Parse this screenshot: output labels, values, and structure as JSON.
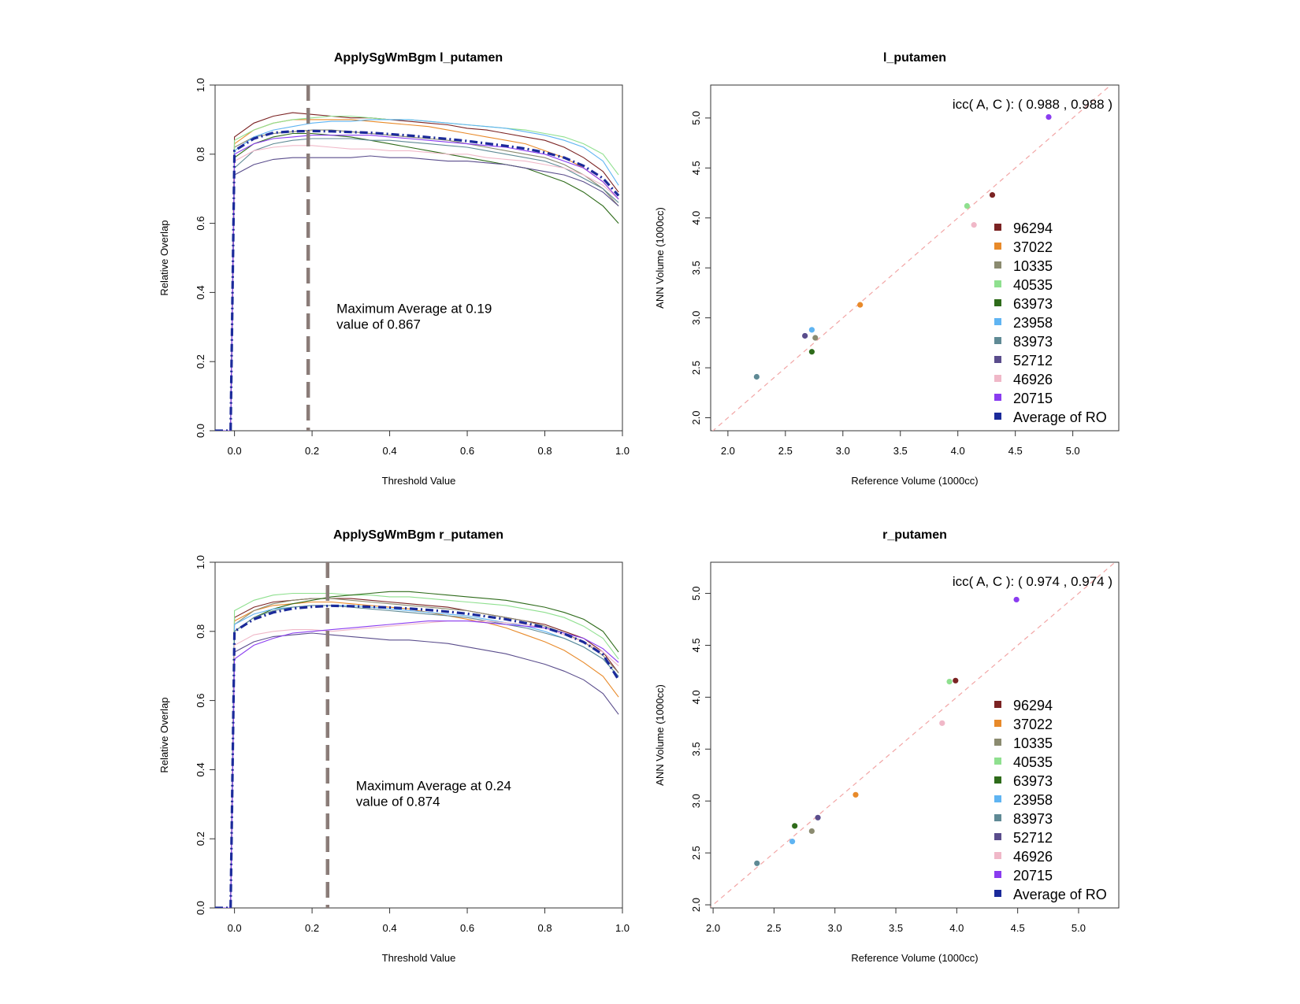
{
  "colors": {
    "96294": "#7b2323",
    "37022": "#e88a2a",
    "10335": "#8b8b70",
    "40535": "#8fe08f",
    "63973": "#2e6b1a",
    "23958": "#5fb4f2",
    "83973": "#5f8a95",
    "52712": "#5a4d8c",
    "46926": "#f0b8c8",
    "20715": "#8a3cf0",
    "Average of RO": "#1b2a9a",
    "threshold_line": "#8a7c78",
    "identity_line": "#f2a5a5"
  },
  "chart_data": [
    {
      "type": "line",
      "title": "ApplySgWmBgm l_putamen",
      "xlabel": "Threshold Value",
      "ylabel": "Relative Overlap",
      "xlim": [
        -0.05,
        1.0
      ],
      "ylim": [
        0.0,
        1.0
      ],
      "x_ticks": [
        "0.0",
        "0.2",
        "0.4",
        "0.6",
        "0.8",
        "1.0"
      ],
      "y_ticks": [
        "0.0",
        "0.2",
        "0.4",
        "0.6",
        "0.8",
        "1.0"
      ],
      "x": [
        -0.05,
        -0.01,
        0.0,
        0.05,
        0.1,
        0.15,
        0.2,
        0.25,
        0.3,
        0.35,
        0.4,
        0.45,
        0.5,
        0.55,
        0.6,
        0.65,
        0.7,
        0.75,
        0.8,
        0.85,
        0.9,
        0.95,
        0.99
      ],
      "series": [
        {
          "name": "96294",
          "values": [
            0,
            0,
            0.85,
            0.89,
            0.91,
            0.92,
            0.915,
            0.91,
            0.905,
            0.905,
            0.9,
            0.895,
            0.89,
            0.885,
            0.875,
            0.87,
            0.86,
            0.85,
            0.84,
            0.82,
            0.79,
            0.75,
            0.69
          ]
        },
        {
          "name": "37022",
          "values": [
            0,
            0,
            0.83,
            0.87,
            0.89,
            0.9,
            0.9,
            0.9,
            0.9,
            0.895,
            0.89,
            0.885,
            0.88,
            0.87,
            0.86,
            0.85,
            0.84,
            0.83,
            0.81,
            0.79,
            0.76,
            0.72,
            0.67
          ]
        },
        {
          "name": "10335",
          "values": [
            0,
            0,
            0.82,
            0.85,
            0.86,
            0.865,
            0.87,
            0.87,
            0.865,
            0.86,
            0.855,
            0.85,
            0.845,
            0.84,
            0.83,
            0.82,
            0.81,
            0.8,
            0.79,
            0.77,
            0.74,
            0.7,
            0.65
          ]
        },
        {
          "name": "40535",
          "values": [
            0,
            0,
            0.84,
            0.87,
            0.89,
            0.9,
            0.905,
            0.91,
            0.91,
            0.905,
            0.9,
            0.9,
            0.895,
            0.89,
            0.885,
            0.88,
            0.875,
            0.87,
            0.86,
            0.85,
            0.83,
            0.8,
            0.74
          ]
        },
        {
          "name": "63973",
          "values": [
            0,
            0,
            0.79,
            0.83,
            0.85,
            0.86,
            0.86,
            0.855,
            0.85,
            0.84,
            0.83,
            0.82,
            0.81,
            0.8,
            0.79,
            0.78,
            0.77,
            0.76,
            0.74,
            0.72,
            0.69,
            0.65,
            0.6
          ]
        },
        {
          "name": "23958",
          "values": [
            0,
            0,
            0.81,
            0.85,
            0.87,
            0.88,
            0.89,
            0.895,
            0.895,
            0.9,
            0.9,
            0.9,
            0.895,
            0.89,
            0.885,
            0.88,
            0.875,
            0.865,
            0.855,
            0.84,
            0.82,
            0.78,
            0.71
          ]
        },
        {
          "name": "83973",
          "values": [
            0,
            0,
            0.76,
            0.81,
            0.83,
            0.84,
            0.845,
            0.845,
            0.845,
            0.84,
            0.84,
            0.835,
            0.83,
            0.825,
            0.82,
            0.81,
            0.8,
            0.79,
            0.78,
            0.76,
            0.73,
            0.7,
            0.66
          ]
        },
        {
          "name": "52712",
          "values": [
            0,
            0,
            0.74,
            0.77,
            0.785,
            0.79,
            0.79,
            0.79,
            0.79,
            0.795,
            0.79,
            0.79,
            0.785,
            0.78,
            0.78,
            0.775,
            0.77,
            0.76,
            0.75,
            0.74,
            0.72,
            0.69,
            0.65
          ]
        },
        {
          "name": "46926",
          "values": [
            0,
            0,
            0.78,
            0.81,
            0.82,
            0.825,
            0.825,
            0.82,
            0.815,
            0.815,
            0.81,
            0.81,
            0.805,
            0.8,
            0.8,
            0.79,
            0.785,
            0.78,
            0.77,
            0.76,
            0.74,
            0.71,
            0.67
          ]
        },
        {
          "name": "20715",
          "values": [
            0,
            0,
            0.8,
            0.83,
            0.845,
            0.85,
            0.855,
            0.855,
            0.855,
            0.855,
            0.85,
            0.845,
            0.84,
            0.835,
            0.83,
            0.825,
            0.82,
            0.81,
            0.8,
            0.78,
            0.76,
            0.72,
            0.67
          ]
        },
        {
          "name": "Average of RO",
          "values": [
            0,
            0,
            0.81,
            0.845,
            0.862,
            0.866,
            0.867,
            0.866,
            0.864,
            0.862,
            0.858,
            0.854,
            0.849,
            0.844,
            0.838,
            0.831,
            0.824,
            0.816,
            0.805,
            0.79,
            0.766,
            0.73,
            0.68
          ]
        }
      ],
      "threshold": 0.19,
      "annotation": [
        "Maximum Average at  0.19",
        "value of  0.867"
      ]
    },
    {
      "type": "scatter",
      "title": "l_putamen",
      "xlabel": "Reference Volume (1000cc)",
      "ylabel": "ANN Volume (1000cc)",
      "xlim": [
        1.85,
        5.4
      ],
      "ylim": [
        1.87,
        5.33
      ],
      "x_ticks": [
        "2.0",
        "2.5",
        "3.0",
        "3.5",
        "4.0",
        "4.5",
        "5.0"
      ],
      "y_ticks": [
        "2.0",
        "2.5",
        "3.0",
        "3.5",
        "4.0",
        "4.5",
        "5.0"
      ],
      "icc_text": "icc( A, C ): ( 0.988  ,  0.988  )",
      "legend": [
        "96294",
        "37022",
        "10335",
        "40535",
        "63973",
        "23958",
        "83973",
        "52712",
        "46926",
        "20715",
        "Average of RO"
      ],
      "points": [
        {
          "name": "96294",
          "x": 4.3,
          "y": 4.23
        },
        {
          "name": "37022",
          "x": 3.15,
          "y": 3.13
        },
        {
          "name": "10335",
          "x": 2.76,
          "y": 2.8
        },
        {
          "name": "40535",
          "x": 4.08,
          "y": 4.12
        },
        {
          "name": "63973",
          "x": 2.73,
          "y": 2.66
        },
        {
          "name": "23958",
          "x": 2.73,
          "y": 2.88
        },
        {
          "name": "83973",
          "x": 2.25,
          "y": 2.41
        },
        {
          "name": "52712",
          "x": 2.67,
          "y": 2.82
        },
        {
          "name": "46926",
          "x": 4.14,
          "y": 3.93
        },
        {
          "name": "20715",
          "x": 4.79,
          "y": 5.01
        }
      ]
    },
    {
      "type": "line",
      "title": "ApplySgWmBgm r_putamen",
      "xlabel": "Threshold Value",
      "ylabel": "Relative Overlap",
      "xlim": [
        -0.05,
        1.0
      ],
      "ylim": [
        0.0,
        1.0
      ],
      "x_ticks": [
        "0.0",
        "0.2",
        "0.4",
        "0.6",
        "0.8",
        "1.0"
      ],
      "y_ticks": [
        "0.0",
        "0.2",
        "0.4",
        "0.6",
        "0.8",
        "1.0"
      ],
      "x": [
        -0.05,
        -0.01,
        0.0,
        0.05,
        0.1,
        0.15,
        0.2,
        0.25,
        0.3,
        0.35,
        0.4,
        0.45,
        0.5,
        0.55,
        0.6,
        0.65,
        0.7,
        0.75,
        0.8,
        0.85,
        0.9,
        0.95,
        0.99
      ],
      "series": [
        {
          "name": "96294",
          "values": [
            0,
            0,
            0.84,
            0.87,
            0.885,
            0.89,
            0.895,
            0.895,
            0.895,
            0.89,
            0.885,
            0.88,
            0.875,
            0.87,
            0.86,
            0.85,
            0.84,
            0.83,
            0.82,
            0.8,
            0.78,
            0.74,
            0.68
          ]
        },
        {
          "name": "37022",
          "values": [
            0,
            0,
            0.83,
            0.86,
            0.875,
            0.88,
            0.885,
            0.885,
            0.88,
            0.875,
            0.87,
            0.865,
            0.855,
            0.845,
            0.835,
            0.825,
            0.81,
            0.79,
            0.77,
            0.745,
            0.71,
            0.67,
            0.61
          ]
        },
        {
          "name": "10335",
          "values": [
            0,
            0,
            0.82,
            0.86,
            0.88,
            0.89,
            0.895,
            0.895,
            0.89,
            0.885,
            0.88,
            0.875,
            0.87,
            0.865,
            0.86,
            0.85,
            0.84,
            0.83,
            0.815,
            0.795,
            0.77,
            0.73,
            0.68
          ]
        },
        {
          "name": "40535",
          "values": [
            0,
            0,
            0.86,
            0.89,
            0.905,
            0.91,
            0.91,
            0.91,
            0.905,
            0.905,
            0.9,
            0.9,
            0.895,
            0.89,
            0.885,
            0.88,
            0.875,
            0.865,
            0.855,
            0.84,
            0.815,
            0.78,
            0.72
          ]
        },
        {
          "name": "63973",
          "values": [
            0,
            0,
            0.8,
            0.84,
            0.865,
            0.88,
            0.89,
            0.9,
            0.905,
            0.91,
            0.915,
            0.915,
            0.91,
            0.905,
            0.9,
            0.895,
            0.89,
            0.88,
            0.87,
            0.855,
            0.835,
            0.8,
            0.74
          ]
        },
        {
          "name": "23958",
          "values": [
            0,
            0,
            0.82,
            0.85,
            0.865,
            0.87,
            0.875,
            0.875,
            0.875,
            0.87,
            0.865,
            0.86,
            0.855,
            0.85,
            0.845,
            0.835,
            0.825,
            0.815,
            0.8,
            0.78,
            0.755,
            0.72,
            0.67
          ]
        },
        {
          "name": "83973",
          "values": [
            0,
            0,
            0.8,
            0.84,
            0.86,
            0.87,
            0.875,
            0.875,
            0.87,
            0.865,
            0.86,
            0.855,
            0.85,
            0.845,
            0.84,
            0.83,
            0.82,
            0.81,
            0.795,
            0.78,
            0.755,
            0.72,
            0.67
          ]
        },
        {
          "name": "52712",
          "values": [
            0,
            0,
            0.74,
            0.77,
            0.785,
            0.79,
            0.795,
            0.79,
            0.785,
            0.78,
            0.775,
            0.775,
            0.77,
            0.765,
            0.755,
            0.745,
            0.735,
            0.72,
            0.705,
            0.685,
            0.66,
            0.62,
            0.56
          ]
        },
        {
          "name": "46926",
          "values": [
            0,
            0,
            0.76,
            0.79,
            0.8,
            0.805,
            0.805,
            0.8,
            0.805,
            0.81,
            0.815,
            0.82,
            0.825,
            0.83,
            0.83,
            0.83,
            0.825,
            0.82,
            0.81,
            0.79,
            0.77,
            0.74,
            0.7
          ]
        },
        {
          "name": "20715",
          "values": [
            0,
            0,
            0.72,
            0.76,
            0.78,
            0.795,
            0.8,
            0.805,
            0.81,
            0.815,
            0.82,
            0.825,
            0.83,
            0.83,
            0.83,
            0.825,
            0.82,
            0.815,
            0.81,
            0.795,
            0.78,
            0.75,
            0.71
          ]
        },
        {
          "name": "Average of RO",
          "values": [
            0,
            0,
            0.8,
            0.835,
            0.855,
            0.866,
            0.871,
            0.874,
            0.873,
            0.871,
            0.869,
            0.866,
            0.862,
            0.857,
            0.851,
            0.843,
            0.835,
            0.824,
            0.811,
            0.793,
            0.769,
            0.733,
            0.66
          ]
        }
      ],
      "threshold": 0.24,
      "annotation": [
        "Maximum Average at  0.24",
        "value of  0.874"
      ]
    },
    {
      "type": "scatter",
      "title": "r_putamen",
      "xlabel": "Reference Volume (1000cc)",
      "ylabel": "ANN Volume (1000cc)",
      "xlim": [
        1.98,
        5.33
      ],
      "ylim": [
        1.97,
        5.3
      ],
      "x_ticks": [
        "2.0",
        "2.5",
        "3.0",
        "3.5",
        "4.0",
        "4.5",
        "5.0"
      ],
      "y_ticks": [
        "2.0",
        "2.5",
        "3.0",
        "3.5",
        "4.0",
        "4.5",
        "5.0"
      ],
      "icc_text": "icc( A, C ): ( 0.974  ,  0.974  )",
      "legend": [
        "96294",
        "37022",
        "10335",
        "40535",
        "63973",
        "23958",
        "83973",
        "52712",
        "46926",
        "20715",
        "Average of RO"
      ],
      "points": [
        {
          "name": "96294",
          "x": 3.99,
          "y": 4.16
        },
        {
          "name": "37022",
          "x": 3.17,
          "y": 3.06
        },
        {
          "name": "10335",
          "x": 2.81,
          "y": 2.71
        },
        {
          "name": "40535",
          "x": 3.94,
          "y": 4.15
        },
        {
          "name": "63973",
          "x": 2.67,
          "y": 2.76
        },
        {
          "name": "23958",
          "x": 2.65,
          "y": 2.61
        },
        {
          "name": "83973",
          "x": 2.36,
          "y": 2.4
        },
        {
          "name": "52712",
          "x": 2.86,
          "y": 2.84
        },
        {
          "name": "46926",
          "x": 3.88,
          "y": 3.75
        },
        {
          "name": "20715",
          "x": 4.49,
          "y": 4.94
        }
      ]
    }
  ]
}
